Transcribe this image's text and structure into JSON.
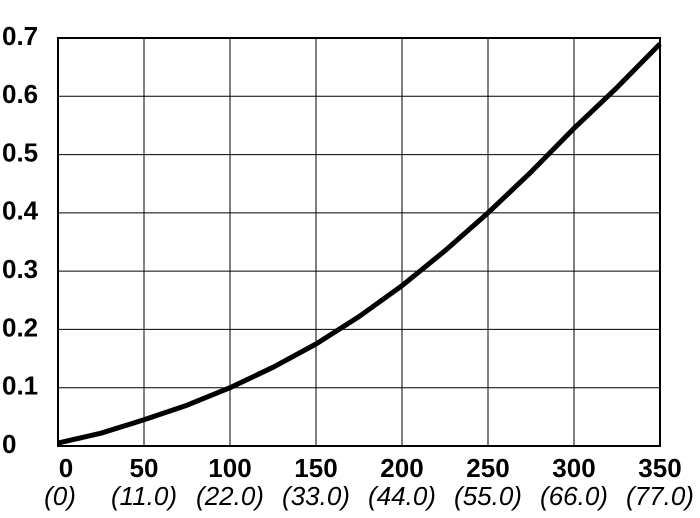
{
  "chart_data": {
    "type": "line",
    "x": [
      0,
      25,
      50,
      75,
      100,
      125,
      150,
      175,
      200,
      225,
      250,
      275,
      300,
      325,
      350
    ],
    "values": [
      0.005,
      0.022,
      0.045,
      0.07,
      0.1,
      0.135,
      0.175,
      0.222,
      0.275,
      0.335,
      0.4,
      0.47,
      0.545,
      0.615,
      0.69
    ],
    "color": "#000000",
    "xlim": [
      0,
      350
    ],
    "xticks": [
      0,
      50,
      100,
      150,
      200,
      250,
      300,
      350
    ],
    "x2ticks": [
      {
        "value": 0,
        "label": "(0)"
      },
      {
        "value": 50,
        "label": "(11.0)"
      },
      {
        "value": 100,
        "label": "(22.0)"
      },
      {
        "value": 150,
        "label": "(33.0)"
      },
      {
        "value": 200,
        "label": "(44.0)"
      },
      {
        "value": 250,
        "label": "(55.0)"
      },
      {
        "value": 300,
        "label": "(66.0)"
      },
      {
        "value": 350,
        "label": "(77.0)"
      }
    ],
    "ylim": [
      0,
      0.7
    ],
    "yticks": [
      0,
      0.1,
      0.2,
      0.3,
      0.4,
      0.5,
      0.6,
      0.7
    ],
    "grid": true
  }
}
